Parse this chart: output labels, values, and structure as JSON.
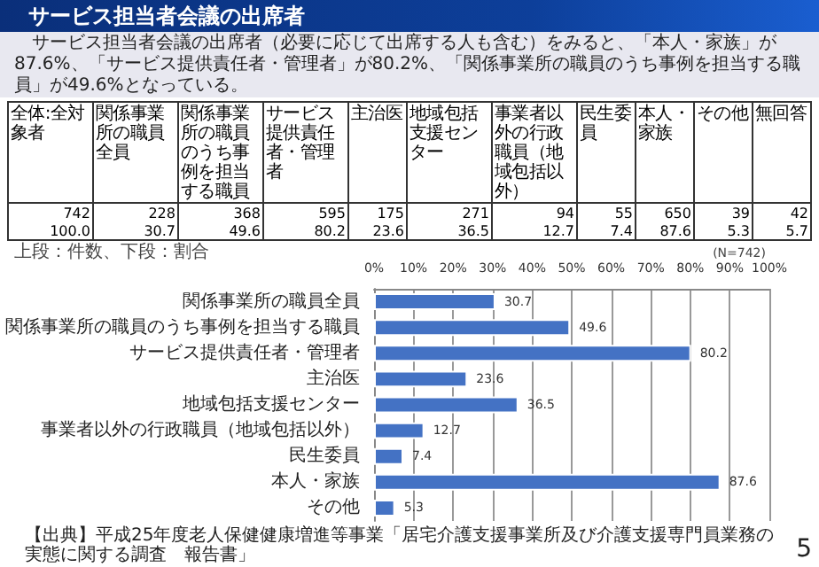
{
  "chart_data": {
    "type": "bar",
    "orientation": "horizontal",
    "title": "サービス担当者会議の出席者",
    "subtitle": "サービス担当者会議の出席者（必要に応じて出席する人も含む）をみると、「本人・家族」が87.6%、「サービス提供責任者・管理者」が80.2%、「関係事業所の職員のうち事例を担当する職員」が49.6%となっている。",
    "categories": [
      "関係事業所の職員全員",
      "関係事業所の職員のうち事例を担当する職員",
      "サービス提供責任者・管理者",
      "主治医",
      "地域包括支援センター",
      "事業者以外の行政職員（地域包括以外）",
      "民生委員",
      "本人・家族",
      "その他"
    ],
    "values": [
      30.7,
      49.6,
      80.2,
      23.6,
      36.5,
      12.7,
      7.4,
      87.6,
      5.3
    ],
    "color": "#4472c4",
    "data_labels": true,
    "grid": "x",
    "xlim": [
      0,
      100
    ],
    "xticks": [
      {
        "value": 0,
        "label": "0%"
      },
      {
        "value": 10,
        "label": "10%"
      },
      {
        "value": 20,
        "label": "20%"
      },
      {
        "value": 30,
        "label": "30%"
      },
      {
        "value": 40,
        "label": "40%"
      },
      {
        "value": 50,
        "label": "50%"
      },
      {
        "value": 60,
        "label": "60%"
      },
      {
        "value": 70,
        "label": "70%"
      },
      {
        "value": 80,
        "label": "80%"
      },
      {
        "value": 90,
        "label": "90%"
      },
      {
        "value": 100,
        "label": "100%"
      }
    ],
    "annotations": [
      "全体:全対象者",
      "関係事業所の職員全員",
      "関係事業所の職員のうち事例を担当する職員",
      "サービス提供責任者・管理者",
      "主治医",
      "地域包括支援センター",
      "事業者以外の行政職員（地域包括以外）",
      "民生委員",
      "本人・家族",
      "その他",
      "無回答",
      "742",
      "228",
      "368",
      "595",
      "175",
      "271",
      "94",
      "55",
      "650",
      "39",
      "42",
      "100.0",
      "30.7",
      "49.6",
      "80.2",
      "23.6",
      "36.5",
      "12.7",
      "7.4",
      "87.6",
      "5.3",
      "5.7",
      "上段：件数、下段：割合",
      "(N=742)",
      "【出典】平成25年度老人保健健康増進等事業「居宅介護支援事業所及び介護支援専門員業務の実態に関する調査　報告書」",
      "5"
    ]
  }
}
